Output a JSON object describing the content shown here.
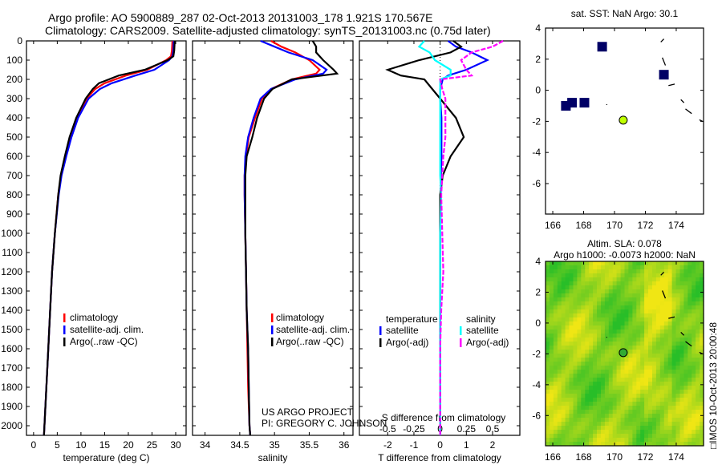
{
  "titles": {
    "line1": "Argo profile: AO 5900889_287 02-Oct-2013 20131003_178 1.921S 170.567E",
    "line2": "Climatology: CARS2009. Satellite-adjusted climatology: synTS_20131003.nc (0.75d later)"
  },
  "side_stamp": "IMOS 10-Oct-2013 20:00:48",
  "credits": {
    "line1": "US ARGO PROJECT",
    "line2": "PI: GREGORY C. JOHNSON"
  },
  "colors": {
    "clim": "#ff0000",
    "sat": "#0000ff",
    "argo": "#000000",
    "sal_sat": "#00ffff",
    "sal_argo": "#ff00ff",
    "station": "#000066",
    "float": "#bfff00"
  },
  "chart_data": [
    {
      "type": "line",
      "id": "temperature",
      "xlabel": "temperature (deg C)",
      "ylabel": "",
      "xlim": [
        -1.5,
        32.2
      ],
      "ylim": [
        2050,
        0
      ],
      "xticks": [
        0,
        5,
        10,
        15,
        20,
        25,
        30
      ],
      "yticks": [
        0,
        100,
        200,
        300,
        400,
        500,
        600,
        700,
        800,
        900,
        1000,
        1100,
        1200,
        1300,
        1400,
        1500,
        1600,
        1700,
        1800,
        1900,
        2000
      ],
      "legend": [
        "climatology",
        "satellite-adj. clim.",
        "Argo(..raw -QC)"
      ],
      "depth": [
        0,
        50,
        80,
        100,
        150,
        180,
        220,
        250,
        300,
        400,
        500,
        600,
        700,
        800,
        1000,
        1200,
        1400,
        1600,
        1800,
        2000,
        2050
      ],
      "series": [
        {
          "name": "climatology",
          "values": [
            29.3,
            29.2,
            29.0,
            28.0,
            24.0,
            19.5,
            15.0,
            13.0,
            11.2,
            9.2,
            7.9,
            6.8,
            5.8,
            5.2,
            4.5,
            3.9,
            3.5,
            3.1,
            2.7,
            2.3,
            2.2
          ]
        },
        {
          "name": "satellite-adj. clim.",
          "values": [
            29.6,
            29.5,
            29.3,
            28.6,
            25.5,
            21.5,
            16.5,
            14.0,
            11.6,
            9.4,
            8.0,
            6.9,
            5.9,
            5.3,
            4.5,
            3.9,
            3.5,
            3.1,
            2.7,
            2.3,
            2.2
          ]
        },
        {
          "name": "Argo(..raw -QC)",
          "values": [
            29.8,
            29.7,
            29.5,
            28.3,
            23.5,
            18.0,
            13.8,
            12.5,
            11.0,
            9.0,
            7.6,
            6.6,
            5.7,
            5.2,
            4.5,
            3.9,
            3.5,
            3.1,
            2.7,
            2.3,
            2.2
          ]
        }
      ]
    },
    {
      "type": "line",
      "id": "salinity",
      "xlabel": "salinity",
      "xlim": [
        33.82,
        36.13
      ],
      "ylim": [
        2050,
        0
      ],
      "xticks": [
        34,
        34.5,
        35,
        35.5,
        36
      ],
      "legend": [
        "climatology",
        "satellite-adj. clim.",
        "Argo(..raw -QC)"
      ],
      "depth": [
        0,
        30,
        60,
        100,
        150,
        170,
        200,
        250,
        300,
        400,
        500,
        600,
        700,
        800,
        1000,
        1200,
        1400,
        1600,
        1800,
        2000,
        2050
      ],
      "series": [
        {
          "name": "climatology",
          "values": [
            34.95,
            35.1,
            35.3,
            35.5,
            35.65,
            35.6,
            35.25,
            34.95,
            34.82,
            34.72,
            34.63,
            34.59,
            34.57,
            34.57,
            34.58,
            34.59,
            34.6,
            34.61,
            34.62,
            34.64,
            34.65
          ]
        },
        {
          "name": "satellite-adj. clim.",
          "values": [
            34.8,
            35.0,
            35.2,
            35.55,
            35.75,
            35.7,
            35.3,
            34.95,
            34.8,
            34.7,
            34.62,
            34.58,
            34.57,
            34.57,
            34.58,
            34.59,
            34.6,
            34.62,
            34.63,
            34.64,
            34.65
          ]
        },
        {
          "name": "Argo(..raw -QC)",
          "values": [
            35.55,
            35.6,
            35.6,
            35.7,
            35.85,
            35.9,
            35.25,
            34.97,
            34.85,
            34.75,
            34.68,
            34.6,
            34.58,
            34.58,
            34.58,
            34.59,
            34.6,
            34.62,
            34.63,
            34.64,
            34.65
          ]
        }
      ]
    },
    {
      "type": "line",
      "id": "differences",
      "xlabel": "T difference from climatology",
      "xlabel2": "S difference from climatology",
      "xlim": [
        -3.08,
        3.04
      ],
      "ylim": [
        2050,
        0
      ],
      "xticks": [
        -2,
        -1,
        0,
        1,
        2
      ],
      "xticks2": [
        -0.5,
        -0.25,
        0,
        0.25,
        0.5
      ],
      "legend_headers": [
        "temperature",
        "salinity"
      ],
      "legend": [
        "satellite",
        "Argo(-adj)",
        "satellite",
        "Argo(-adj)"
      ],
      "depth": [
        0,
        30,
        60,
        100,
        150,
        180,
        200,
        250,
        300,
        400,
        500,
        600,
        700,
        800,
        1000,
        1200,
        1400,
        1600,
        1800,
        2000,
        2050
      ],
      "series": [
        {
          "name": "T satellite",
          "values": [
            0.3,
            0.6,
            1.2,
            1.8,
            1.0,
            0.3,
            0.1,
            0.0,
            0.0,
            0.05,
            0.05,
            0.05,
            0.03,
            0.02,
            0.0,
            0.0,
            0.0,
            0.0,
            0.0,
            0.0,
            0.0
          ]
        },
        {
          "name": "T Argo(-adj)",
          "values": [
            0.5,
            0.8,
            0.4,
            -0.8,
            -2.0,
            -1.5,
            -0.6,
            -0.3,
            0.0,
            0.6,
            0.9,
            0.4,
            0.1,
            0.0,
            0.0,
            0.0,
            0.0,
            0.0,
            0.0,
            0.0,
            0.0
          ]
        },
        {
          "name": "S satellite",
          "values": [
            -0.15,
            -0.2,
            -0.1,
            -0.05,
            0.1,
            0.1,
            0.0,
            0.0,
            0.0,
            0.0,
            0.0,
            0.0,
            0.0,
            0.01,
            0.0,
            0.0,
            0.0,
            0.0,
            0.0,
            0.0,
            0.0
          ]
        },
        {
          "name": "S Argo(-adj)",
          "values": [
            0.6,
            0.5,
            0.3,
            0.2,
            0.25,
            0.3,
            0.0,
            0.02,
            0.05,
            0.05,
            0.05,
            0.03,
            0.02,
            0.01,
            0.02,
            0.03,
            0.01,
            0.0,
            0.0,
            0.0,
            0.0
          ]
        }
      ]
    },
    {
      "type": "scatter",
      "id": "sst-map",
      "title": "sat. SST: NaN Argo: 30.1",
      "xlim": [
        165.53,
        175.77
      ],
      "ylim": [
        -7.96,
        4
      ],
      "xticks": [
        166,
        168,
        170,
        172,
        174
      ],
      "yticks": [
        4,
        2,
        0,
        -2,
        -4,
        -6
      ],
      "stations": [
        [
          166.85,
          -1.0
        ],
        [
          167.25,
          -0.8
        ],
        [
          168.05,
          -0.8
        ],
        [
          169.2,
          2.8
        ],
        [
          173.2,
          1.0
        ]
      ],
      "argo_position": [
        170.567,
        -1.921
      ]
    },
    {
      "type": "heatmap",
      "id": "sla-map",
      "title": "Altim. SLA: 0.078",
      "subtitle": "Argo h1000: -0.0073 h2000: NaN",
      "xlim": [
        165.53,
        175.77
      ],
      "ylim": [
        -7.96,
        4
      ],
      "xticks": [
        166,
        168,
        170,
        172,
        174
      ],
      "yticks": [
        4,
        2,
        0,
        -2,
        -4,
        -6
      ],
      "argo_position": [
        170.567,
        -1.921
      ]
    }
  ]
}
